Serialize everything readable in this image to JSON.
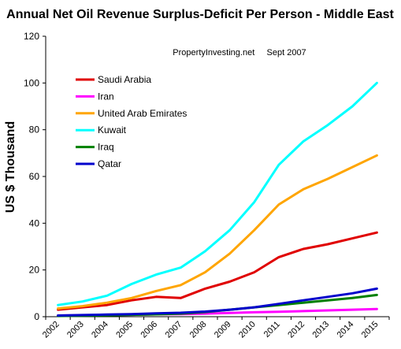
{
  "chart_data": {
    "type": "line",
    "title": "Annual Net Oil Revenue Surplus-Deficit Per Person - Middle East",
    "annotation": "PropertyInvesting.net     Sept 2007",
    "xlabel": "",
    "ylabel": "US $  Thousand",
    "x": [
      "2002",
      "2003",
      "2004",
      "2005",
      "2006",
      "2007",
      "2008",
      "2009",
      "2010",
      "2011",
      "2012",
      "2013",
      "2014",
      "2015"
    ],
    "ylim": [
      0,
      120
    ],
    "yticks": [
      0,
      20,
      40,
      60,
      80,
      100,
      120
    ],
    "grid": false,
    "legend_position": "upper-left",
    "series": [
      {
        "name": "Saudi Arabia",
        "color": "#e00000",
        "values": [
          3,
          4,
          5,
          7,
          8.5,
          8,
          12,
          15,
          19,
          25.5,
          29,
          31,
          33.5,
          36
        ]
      },
      {
        "name": "Iran",
        "color": "#ff00ff",
        "values": [
          0.5,
          0.6,
          0.7,
          0.8,
          1,
          1.1,
          1.3,
          1.6,
          1.9,
          2.1,
          2.4,
          2.7,
          3,
          3.3
        ]
      },
      {
        "name": "United Arab Emirates",
        "color": "#ffa500",
        "values": [
          3.5,
          4.5,
          6,
          8,
          11,
          13.5,
          19,
          27,
          37,
          48,
          54.5,
          59,
          64,
          69
        ]
      },
      {
        "name": "Kuwait",
        "color": "#00ffff",
        "values": [
          5,
          6.5,
          9,
          14,
          18,
          21,
          28,
          37,
          49,
          65,
          75,
          82,
          90,
          100
        ]
      },
      {
        "name": "Iraq",
        "color": "#008000",
        "values": [
          0.3,
          0.4,
          0.6,
          0.8,
          1,
          1.3,
          2,
          3,
          4,
          5,
          6,
          7,
          8,
          9.3
        ]
      },
      {
        "name": "Qatar",
        "color": "#0000cc",
        "values": [
          0.5,
          0.7,
          0.9,
          1.1,
          1.4,
          1.7,
          2.2,
          3,
          4,
          5.5,
          7,
          8.5,
          10,
          12
        ]
      }
    ]
  }
}
